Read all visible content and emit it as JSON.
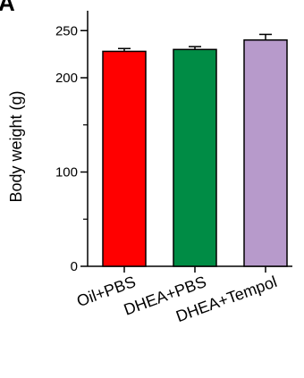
{
  "panel_label": "A",
  "chart_data": {
    "type": "bar",
    "title": "",
    "xlabel": "",
    "ylabel": "Body weight (g)",
    "ylim": [
      0,
      260
    ],
    "yticks_major": [
      0,
      100,
      200,
      250
    ],
    "yticks_minor": [
      50,
      150
    ],
    "categories": [
      "Oil+PBS",
      "DHEA+PBS",
      "DHEA+Tempol"
    ],
    "values": [
      228,
      230,
      240
    ],
    "errors": [
      3,
      3,
      6
    ],
    "colors": [
      "#ff0000",
      "#008c45",
      "#b79acb"
    ],
    "grid": false,
    "legend": "none"
  }
}
